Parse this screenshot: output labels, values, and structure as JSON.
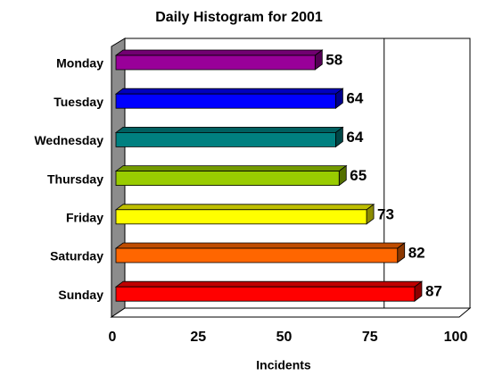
{
  "chart_data": {
    "type": "bar",
    "orientation": "horizontal",
    "title": "Daily Histogram for 2001",
    "xlabel": "Incidents",
    "categories": [
      "Monday",
      "Tuesday",
      "Wednesday",
      "Thursday",
      "Friday",
      "Saturday",
      "Sunday"
    ],
    "values": [
      58,
      64,
      64,
      65,
      73,
      82,
      87
    ],
    "colors": [
      "#990099",
      "#0000ff",
      "#008080",
      "#99cc00",
      "#ffff00",
      "#ff6600",
      "#ff0000"
    ],
    "xlim": [
      0,
      100
    ],
    "xticks": [
      0,
      25,
      50,
      75,
      100
    ]
  }
}
